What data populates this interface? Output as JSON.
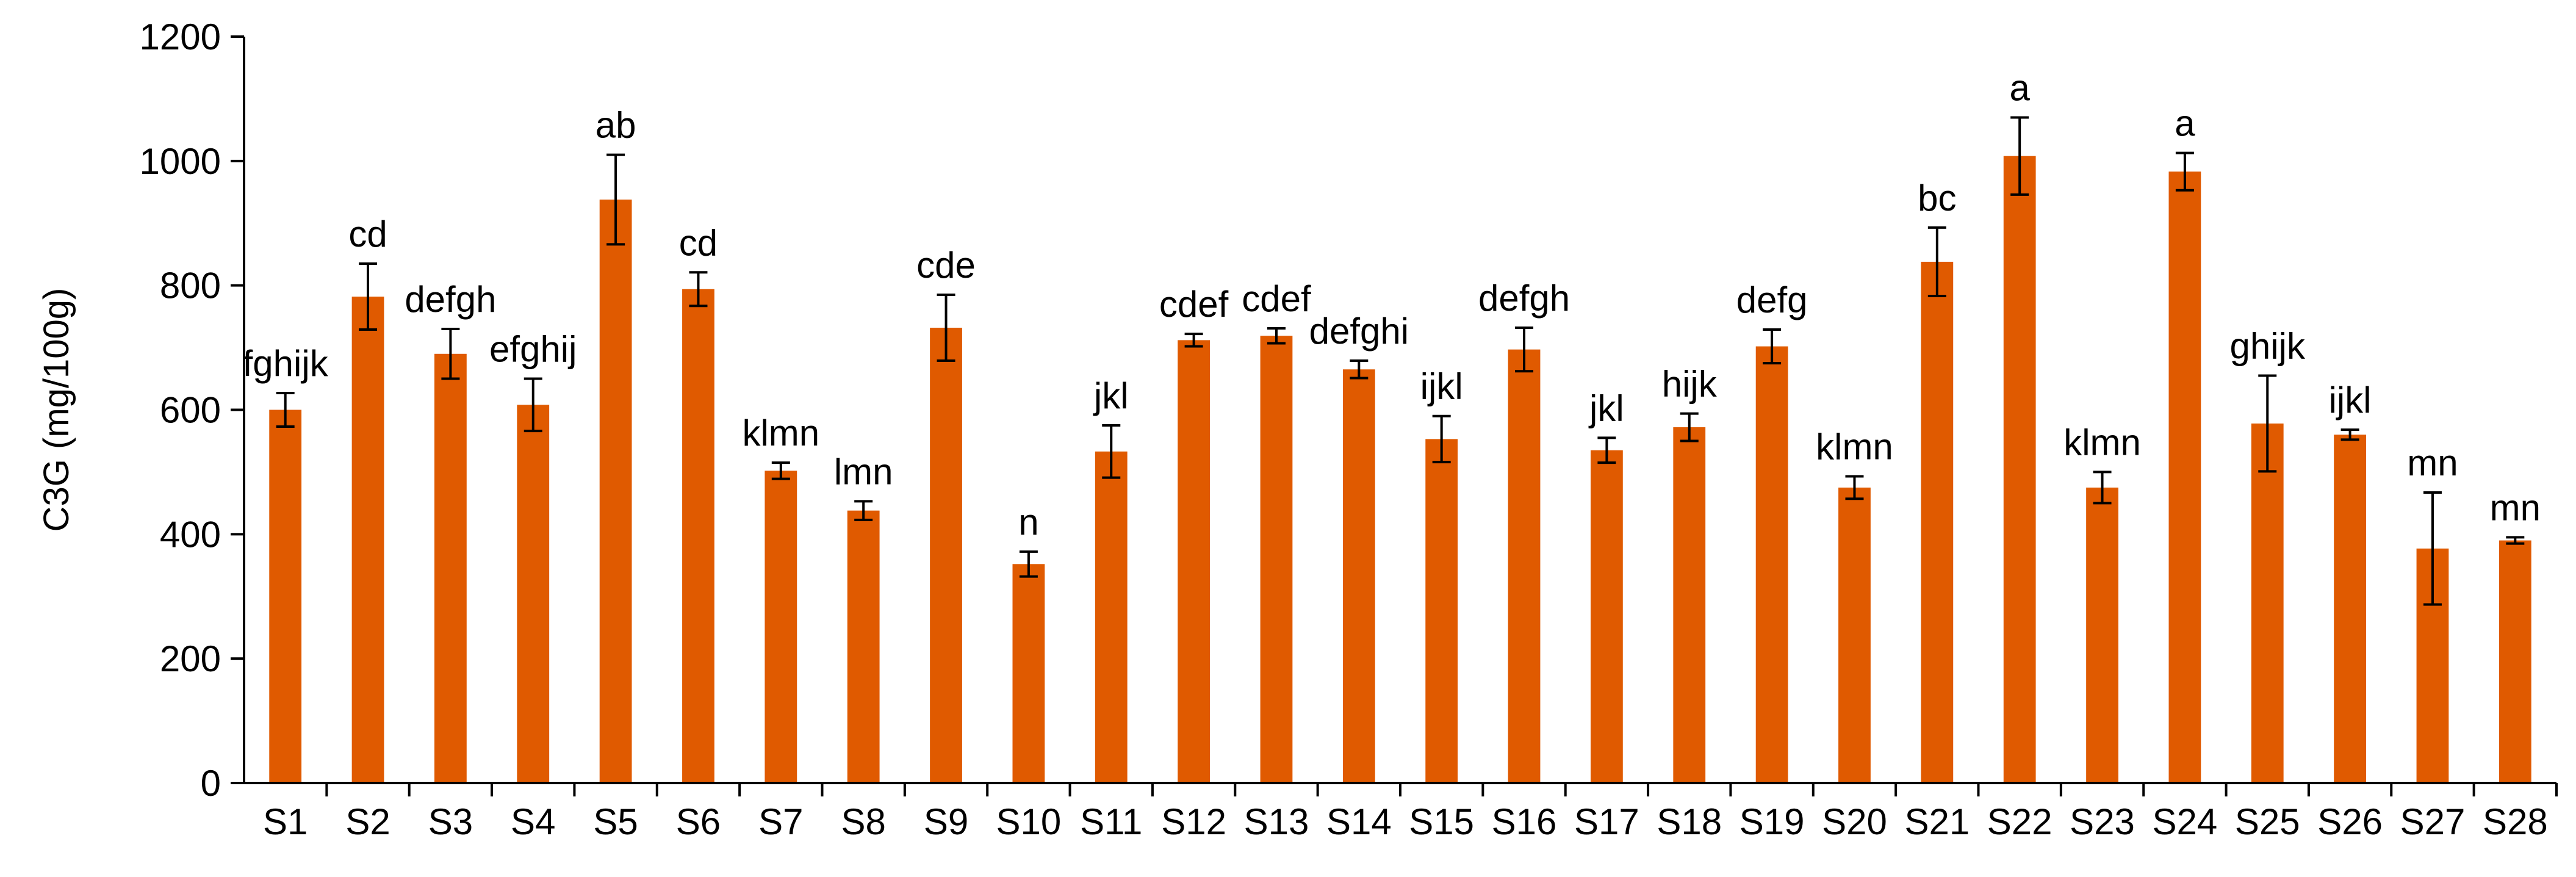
{
  "chart_data": {
    "type": "bar",
    "title": "",
    "xlabel": "",
    "ylabel": "C3G (mg/100g)",
    "ylim": [
      0,
      1200
    ],
    "yticks": [
      0,
      200,
      400,
      600,
      800,
      1000,
      1200
    ],
    "grid": false,
    "legend": "none",
    "bar_color": "#E05A00",
    "error_bar_color": "#000000",
    "categories": [
      "S1",
      "S2",
      "S3",
      "S4",
      "S5",
      "S6",
      "S7",
      "S8",
      "S9",
      "S10",
      "S11",
      "S12",
      "S13",
      "S14",
      "S15",
      "S16",
      "S17",
      "S18",
      "S19",
      "S20",
      "S21",
      "S22",
      "S23",
      "S24",
      "S25",
      "S26",
      "S27",
      "S28"
    ],
    "values": [
      600,
      782,
      690,
      608,
      938,
      794,
      502,
      438,
      732,
      352,
      533,
      712,
      719,
      665,
      553,
      697,
      535,
      572,
      702,
      475,
      838,
      1008,
      475,
      983,
      578,
      560,
      377,
      390
    ],
    "errors": [
      27,
      53,
      40,
      42,
      72,
      27,
      13,
      15,
      53,
      20,
      42,
      10,
      12,
      14,
      37,
      35,
      20,
      22,
      27,
      18,
      55,
      62,
      25,
      30,
      77,
      8,
      90,
      5
    ],
    "significance_labels": [
      "fghijk",
      "cd",
      "defgh",
      "efghij",
      "ab",
      "cd",
      "klmn",
      "lmn",
      "cde",
      "n",
      "jkl",
      "cdef",
      "cdef",
      "defghi",
      "ijkl",
      "defgh",
      "jkl",
      "hijk",
      "defg",
      "klmn",
      "bc",
      "a",
      "klmn",
      "a",
      "ghijk",
      "ijkl",
      "mn",
      "mn"
    ]
  }
}
